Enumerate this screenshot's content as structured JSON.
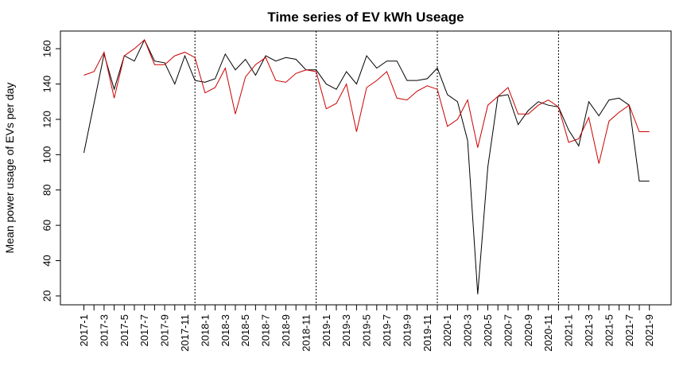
{
  "chart_data": {
    "type": "line",
    "title": "Time series of EV kWh Useage",
    "xlabel": "",
    "ylabel": "Mean power usage of EVs per day",
    "ylim": [
      15,
      170
    ],
    "yticks": [
      20,
      40,
      60,
      80,
      100,
      120,
      140,
      160
    ],
    "grid": false,
    "x": [
      "2017-1",
      "2017-2",
      "2017-3",
      "2017-4",
      "2017-5",
      "2017-6",
      "2017-7",
      "2017-8",
      "2017-9",
      "2017-10",
      "2017-11",
      "2017-12",
      "2018-1",
      "2018-2",
      "2018-3",
      "2018-4",
      "2018-5",
      "2018-6",
      "2018-7",
      "2018-8",
      "2018-9",
      "2018-10",
      "2018-11",
      "2018-12",
      "2019-1",
      "2019-2",
      "2019-3",
      "2019-4",
      "2019-5",
      "2019-6",
      "2019-7",
      "2019-8",
      "2019-9",
      "2019-10",
      "2019-11",
      "2019-12",
      "2020-1",
      "2020-2",
      "2020-3",
      "2020-4",
      "2020-5",
      "2020-6",
      "2020-7",
      "2020-8",
      "2020-9",
      "2020-10",
      "2020-11",
      "2020-12",
      "2021-1",
      "2021-2",
      "2021-3",
      "2021-4",
      "2021-5",
      "2021-6",
      "2021-7",
      "2021-8",
      "2021-9"
    ],
    "xtick_labels": [
      "2017-1",
      "2017-3",
      "2017-5",
      "2017-7",
      "2017-9",
      "2017-11",
      "2018-1",
      "2018-3",
      "2018-5",
      "2018-7",
      "2018-9",
      "2018-11",
      "2019-1",
      "2019-3",
      "2019-5",
      "2019-7",
      "2019-9",
      "2019-11",
      "2020-1",
      "2020-3",
      "2020-5",
      "2020-7",
      "2020-9",
      "2020-11",
      "2021-1",
      "2021-3",
      "2021-5",
      "2021-7",
      "2021-9"
    ],
    "vlines": [
      "2017-12",
      "2018-12",
      "2019-12",
      "2020-12"
    ],
    "series": [
      {
        "color": "#000000",
        "values": [
          101,
          129,
          157,
          137,
          156,
          153,
          165,
          153,
          152,
          140,
          156,
          142,
          141,
          143,
          157,
          148,
          154,
          145,
          156,
          153,
          155,
          154,
          148,
          148,
          140,
          137,
          147,
          140,
          156,
          149,
          153,
          153,
          142,
          142,
          143,
          149,
          134,
          130,
          108,
          21,
          93,
          133,
          134,
          117,
          125,
          130,
          128,
          127,
          114,
          105,
          130,
          122,
          131,
          132,
          128,
          85,
          85
        ]
      },
      {
        "color": "#cc0000",
        "values": [
          145,
          147,
          158,
          132,
          156,
          160,
          165,
          151,
          151,
          156,
          158,
          155,
          135,
          138,
          149,
          123,
          144,
          151,
          155,
          142,
          141,
          146,
          148,
          147,
          126,
          129,
          140,
          113,
          138,
          142,
          147,
          132,
          131,
          136,
          139,
          137,
          116,
          120,
          131,
          104,
          128,
          133,
          138,
          123,
          123,
          128,
          131,
          127,
          107,
          109,
          121,
          95,
          119,
          124,
          128,
          113,
          113
        ]
      }
    ]
  }
}
